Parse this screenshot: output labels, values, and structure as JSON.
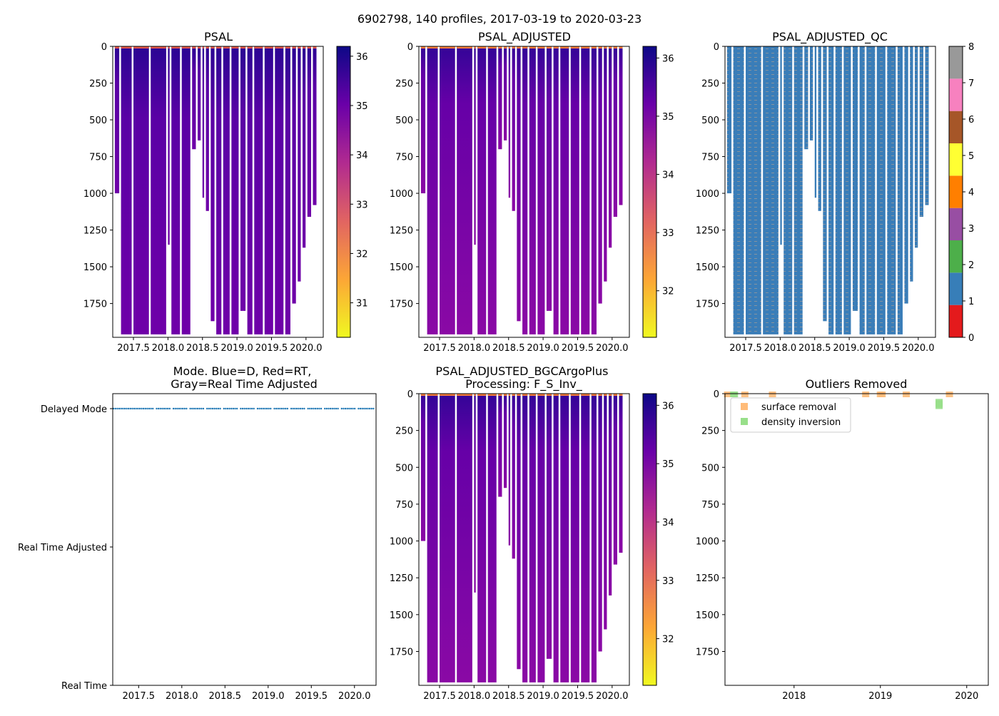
{
  "figure": {
    "suptitle": "6902798, 140 profiles, 2017-03-19 to 2020-03-23"
  },
  "colors": {
    "plasma": [
      "#f0f921",
      "#fca636",
      "#e16462",
      "#b12a90",
      "#6a00a8",
      "#0d0887"
    ],
    "qc": [
      "#e41a1c",
      "#377eb8",
      "#4daf4a",
      "#984ea3",
      "#ff7f00",
      "#ffff33",
      "#a65628",
      "#f781bf",
      "#999999"
    ],
    "surface_removal": "#ffbb78",
    "density_inversion": "#98df8a",
    "mode_points": "#1f77b4"
  },
  "chart_data": [
    {
      "id": "psal",
      "type": "heatmap",
      "title": "PSAL",
      "xlim": [
        2017.2,
        2020.25
      ],
      "ylim": [
        1980,
        0
      ],
      "xticks": [
        "2017.5",
        "2018.0",
        "2018.5",
        "2019.0",
        "2019.5",
        "2020.0"
      ],
      "xtick_values": [
        2017.5,
        2018.0,
        2018.5,
        2019.0,
        2019.5,
        2020.0
      ],
      "yticks": [
        "0",
        "250",
        "500",
        "750",
        "1000",
        "1250",
        "1500",
        "1750"
      ],
      "ytick_values": [
        0,
        250,
        500,
        750,
        1000,
        1250,
        1500,
        1750
      ],
      "colorbar_range": [
        30.3,
        36.2
      ],
      "colorbar_ticks": [
        "31",
        "32",
        "33",
        "34",
        "35",
        "36"
      ],
      "colorbar_tick_values": [
        31,
        32,
        33,
        34,
        35,
        36
      ],
      "surface_value": 35.0,
      "deep_value": 34.7,
      "profile_depths": [
        {
          "x": 2017.23,
          "depth": 1000
        },
        {
          "x": 2017.32,
          "depth": 1960
        },
        {
          "x": 2017.5,
          "depth": 1960
        },
        {
          "x": 2017.75,
          "depth": 1960
        },
        {
          "x": 2018.0,
          "depth": 1350
        },
        {
          "x": 2018.05,
          "depth": 1960
        },
        {
          "x": 2018.2,
          "depth": 1960
        },
        {
          "x": 2018.35,
          "depth": 700
        },
        {
          "x": 2018.43,
          "depth": 640
        },
        {
          "x": 2018.5,
          "depth": 1030
        },
        {
          "x": 2018.55,
          "depth": 1120
        },
        {
          "x": 2018.62,
          "depth": 1870
        },
        {
          "x": 2018.7,
          "depth": 1960
        },
        {
          "x": 2018.8,
          "depth": 1960
        },
        {
          "x": 2018.92,
          "depth": 1960
        },
        {
          "x": 2019.05,
          "depth": 1800
        },
        {
          "x": 2019.15,
          "depth": 1960
        },
        {
          "x": 2019.25,
          "depth": 1960
        },
        {
          "x": 2019.4,
          "depth": 1960
        },
        {
          "x": 2019.55,
          "depth": 1960
        },
        {
          "x": 2019.7,
          "depth": 1960
        },
        {
          "x": 2019.8,
          "depth": 1750
        },
        {
          "x": 2019.88,
          "depth": 1600
        },
        {
          "x": 2019.95,
          "depth": 1370
        },
        {
          "x": 2020.02,
          "depth": 1160
        },
        {
          "x": 2020.1,
          "depth": 1080
        }
      ]
    },
    {
      "id": "psal_adjusted",
      "type": "heatmap",
      "title": "PSAL_ADJUSTED",
      "xlim": [
        2017.2,
        2020.25
      ],
      "ylim": [
        1980,
        0
      ],
      "xticks": [
        "2017.5",
        "2018.0",
        "2018.5",
        "2019.0",
        "2019.5",
        "2020.0"
      ],
      "xtick_values": [
        2017.5,
        2018.0,
        2018.5,
        2019.0,
        2019.5,
        2020.0
      ],
      "yticks": [
        "0",
        "250",
        "500",
        "750",
        "1000",
        "1250",
        "1500",
        "1750"
      ],
      "ytick_values": [
        0,
        250,
        500,
        750,
        1000,
        1250,
        1500,
        1750
      ],
      "colorbar_range": [
        31.2,
        36.2
      ],
      "colorbar_ticks": [
        "32",
        "33",
        "34",
        "35",
        "36"
      ],
      "colorbar_tick_values": [
        32,
        33,
        34,
        35,
        36
      ],
      "surface_value": 35.4,
      "deep_value": 34.8
    },
    {
      "id": "psal_adjusted_qc",
      "type": "heatmap",
      "title": "PSAL_ADJUSTED_QC",
      "xlim": [
        2017.2,
        2020.25
      ],
      "ylim": [
        1980,
        0
      ],
      "xticks": [
        "2017.5",
        "2018.0",
        "2018.5",
        "2019.0",
        "2019.5",
        "2020.0"
      ],
      "xtick_values": [
        2017.5,
        2018.0,
        2018.5,
        2019.0,
        2019.5,
        2020.0
      ],
      "yticks": [
        "0",
        "250",
        "500",
        "750",
        "1000",
        "1250",
        "1500",
        "1750"
      ],
      "ytick_values": [
        0,
        250,
        500,
        750,
        1000,
        1250,
        1500,
        1750
      ],
      "colorbar_range": [
        0,
        8
      ],
      "colorbar_ticks": [
        "0",
        "1",
        "2",
        "3",
        "4",
        "5",
        "6",
        "7",
        "8"
      ],
      "colorbar_tick_values": [
        0,
        1,
        2,
        3,
        4,
        5,
        6,
        7,
        8
      ],
      "dominant_flag": 1,
      "secondary_flag": 8
    },
    {
      "id": "mode",
      "type": "scatter",
      "title": "Mode. Blue=D, Red=RT,\nGray=Real Time Adjusted",
      "xlim": [
        2017.2,
        2020.25
      ],
      "xticks": [
        "2017.5",
        "2018.0",
        "2018.5",
        "2019.0",
        "2019.5",
        "2020.0"
      ],
      "xtick_values": [
        2017.5,
        2018.0,
        2018.5,
        2019.0,
        2019.5,
        2020.0
      ],
      "categories": [
        "Delayed Mode",
        "Real Time Adjusted",
        "Real Time"
      ],
      "points_category": "Delayed Mode",
      "x_start": 2017.21,
      "x_end": 2020.22,
      "n_points": 140
    },
    {
      "id": "psal_bgc",
      "type": "heatmap",
      "title": "PSAL_ADJUSTED_BGCArgoPlus\nProcessing: F_S_Inv_",
      "xlim": [
        2017.2,
        2020.25
      ],
      "ylim": [
        1980,
        0
      ],
      "xticks": [
        "2017.5",
        "2018.0",
        "2018.5",
        "2019.0",
        "2019.5",
        "2020.0"
      ],
      "xtick_values": [
        2017.5,
        2018.0,
        2018.5,
        2019.0,
        2019.5,
        2020.0
      ],
      "yticks": [
        "0",
        "250",
        "500",
        "750",
        "1000",
        "1250",
        "1500",
        "1750"
      ],
      "ytick_values": [
        0,
        250,
        500,
        750,
        1000,
        1250,
        1500,
        1750
      ],
      "colorbar_range": [
        31.2,
        36.2
      ],
      "colorbar_ticks": [
        "32",
        "33",
        "34",
        "35",
        "36"
      ],
      "colorbar_tick_values": [
        32,
        33,
        34,
        35,
        36
      ],
      "surface_value": 35.4,
      "deep_value": 34.8
    },
    {
      "id": "outliers",
      "type": "scatter",
      "title": "Outliers Removed",
      "xlim": [
        2017.2,
        2020.25
      ],
      "ylim": [
        1980,
        0
      ],
      "xticks": [
        "2018",
        "2019",
        "2020"
      ],
      "xtick_values": [
        2018.0,
        2019.0,
        2020.0
      ],
      "yticks": [
        "0",
        "250",
        "500",
        "750",
        "1000",
        "1250",
        "1500",
        "1750"
      ],
      "ytick_values": [
        0,
        250,
        500,
        750,
        1000,
        1250,
        1500,
        1750
      ],
      "legend": [
        "surface removal",
        "density inversion"
      ],
      "legend_position": "upper-left",
      "series": [
        {
          "name": "surface removal",
          "points": [
            {
              "x": 2017.23,
              "y": 0
            },
            {
              "x": 2017.43,
              "y": 0
            },
            {
              "x": 2017.75,
              "y": 0
            },
            {
              "x": 2018.83,
              "y": 0
            },
            {
              "x": 2019.0,
              "y": 0
            },
            {
              "x": 2019.02,
              "y": 0
            },
            {
              "x": 2019.3,
              "y": 0
            },
            {
              "x": 2019.8,
              "y": 0
            }
          ]
        },
        {
          "name": "density inversion",
          "points": [
            {
              "x": 2017.3,
              "y": 0
            },
            {
              "x": 2017.31,
              "y": 5
            },
            {
              "x": 2019.68,
              "y": 55
            },
            {
              "x": 2019.68,
              "y": 65
            },
            {
              "x": 2019.68,
              "y": 75
            },
            {
              "x": 2019.68,
              "y": 85
            }
          ]
        }
      ]
    }
  ]
}
